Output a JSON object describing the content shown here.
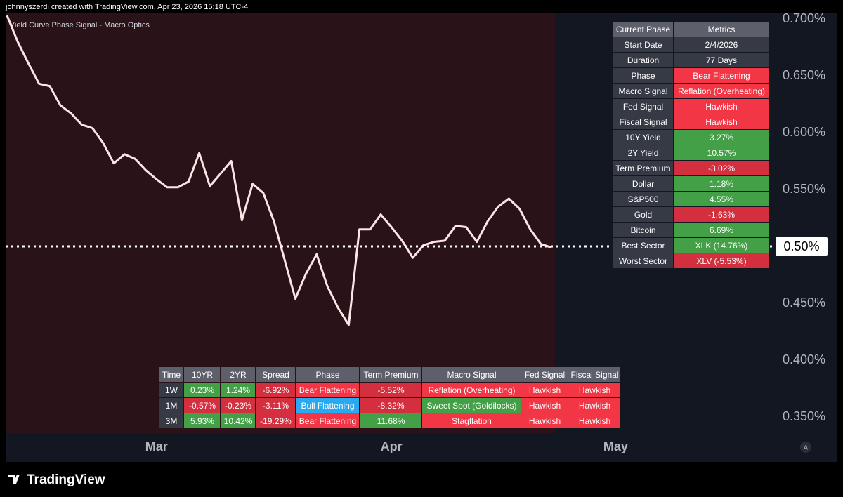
{
  "header": "johnnyszerdi created with TradingView.com, Apr 23, 2026 15:18 UTC-4",
  "ui": {
    "logo": "TradingView",
    "auto_button": "A"
  },
  "chart_data": {
    "type": "line",
    "title": "Yield Curve Phase Signal - Macro Optics",
    "categories": [
      null,
      null,
      null,
      null,
      null,
      null,
      null,
      null,
      null,
      null,
      null,
      null,
      null,
      null,
      "Mar",
      null,
      null,
      null,
      null,
      null,
      null,
      null,
      null,
      null,
      null,
      null,
      null,
      null,
      null,
      null,
      null,
      null,
      null,
      null,
      null,
      null,
      "Apr",
      null,
      null,
      null,
      null,
      null,
      null,
      null,
      null,
      null,
      null,
      null,
      null,
      null,
      null,
      null,
      null,
      null,
      null,
      null,
      null,
      "May",
      null,
      null,
      null,
      null,
      null,
      null,
      null,
      null,
      null,
      null,
      null,
      null,
      null,
      null
    ],
    "series": [
      {
        "color": "#ffe4e6",
        "values": [
          0.703,
          0.68,
          0.661,
          0.643,
          0.641,
          0.624,
          0.617,
          0.607,
          0.604,
          0.591,
          0.573,
          0.581,
          0.577,
          0.567,
          0.559,
          0.552,
          0.552,
          0.557,
          0.582,
          0.553,
          0.564,
          0.575,
          0.523,
          0.555,
          0.547,
          0.522,
          0.488,
          0.454,
          0.476,
          0.493,
          0.465,
          0.446,
          0.431,
          0.515,
          0.515,
          0.528,
          0.517,
          0.505,
          0.49,
          0.501,
          0.504,
          0.505,
          0.518,
          0.517,
          0.504,
          0.522,
          0.535,
          0.542,
          0.533,
          0.515,
          0.502,
          0.499,
          null,
          null,
          null,
          null,
          null,
          null,
          null,
          null,
          null,
          null,
          null,
          null,
          null,
          null,
          null,
          null,
          null,
          null,
          null,
          null
        ]
      }
    ],
    "ylim": [
      0.7,
      0.35
    ],
    "yticks": [
      {
        "value": 0.7,
        "label": "0.700%"
      },
      {
        "value": 0.65,
        "label": "0.650%"
      },
      {
        "value": 0.6,
        "label": "0.600%"
      },
      {
        "value": 0.55,
        "label": "0.550%"
      },
      {
        "value": 0.45,
        "label": "0.450%"
      },
      {
        "value": 0.4,
        "label": "0.400%"
      },
      {
        "value": 0.35,
        "label": "0.350%"
      }
    ],
    "hline": {
      "value": 0.5,
      "label": "0.50%",
      "color": "#ffffff"
    }
  },
  "metrics_table": {
    "header": [
      "Current Phase",
      "Metrics"
    ],
    "rows": [
      [
        "Start Date",
        "2/4/2026"
      ],
      [
        "Duration",
        "77 Days"
      ],
      [
        "Phase",
        "Bear Flattening"
      ],
      [
        "Macro Signal",
        "Reflation (Overheating)"
      ],
      [
        "Fed Signal",
        "Hawkish"
      ],
      [
        "Fiscal Signal",
        "Hawkish"
      ],
      [
        "10Y Yield",
        "3.27%"
      ],
      [
        "2Y Yield",
        "10.57%"
      ],
      [
        "Term Premium",
        "-3.02%"
      ],
      [
        "Dollar",
        "1.18%"
      ],
      [
        "S&P500",
        "4.55%"
      ],
      [
        "Gold",
        "-1.63%"
      ],
      [
        "Bitcoin",
        "6.69%"
      ],
      [
        "Best Sector",
        "XLK (14.76%)"
      ],
      [
        "Worst Sector",
        "XLV (-5.53%)"
      ]
    ],
    "value_colors": [
      "#363a45",
      "#363a45",
      "#f23645",
      "#f23645",
      "#f23645",
      "#f23645",
      "#43a047",
      "#43a047",
      "#d32f3f",
      "#43a047",
      "#43a047",
      "#d32f3f",
      "#43a047",
      "#43a047",
      "#d32f3f"
    ]
  },
  "signal_table": {
    "header": [
      "Time",
      "10YR",
      "2YR",
      "Spread",
      "Phase",
      "Term Premium",
      "Macro Signal",
      "Fed Signal",
      "Fiscal Signal"
    ],
    "rows": [
      [
        "1W",
        "0.23%",
        "1.24%",
        "-6.92%",
        "Bear Flattening",
        "-5.52%",
        "Reflation (Overheating)",
        "Hawkish",
        "Hawkish"
      ],
      [
        "1M",
        "-0.57%",
        "-0.23%",
        "-3.11%",
        "Bull Flattening",
        "-8.32%",
        "Sweet Spot (Goldilocks)",
        "Hawkish",
        "Hawkish"
      ],
      [
        "3M",
        "5.93%",
        "10.42%",
        "-19.29%",
        "Bear Flattening",
        "11.68%",
        "Stagflation",
        "Hawkish",
        "Hawkish"
      ]
    ],
    "cell_colors": [
      [
        "#363a45",
        "#43a047",
        "#43a047",
        "#d32f3f",
        "#f23645",
        "#d32f3f",
        "#f23645",
        "#f23645",
        "#f23645"
      ],
      [
        "#363a45",
        "#d32f3f",
        "#d32f3f",
        "#d32f3f",
        "#29a9f0",
        "#d32f3f",
        "#43a047",
        "#f23645",
        "#f23645"
      ],
      [
        "#363a45",
        "#43a047",
        "#43a047",
        "#d32f3f",
        "#f23645",
        "#43a047",
        "#f23645",
        "#f23645",
        "#f23645"
      ]
    ]
  }
}
